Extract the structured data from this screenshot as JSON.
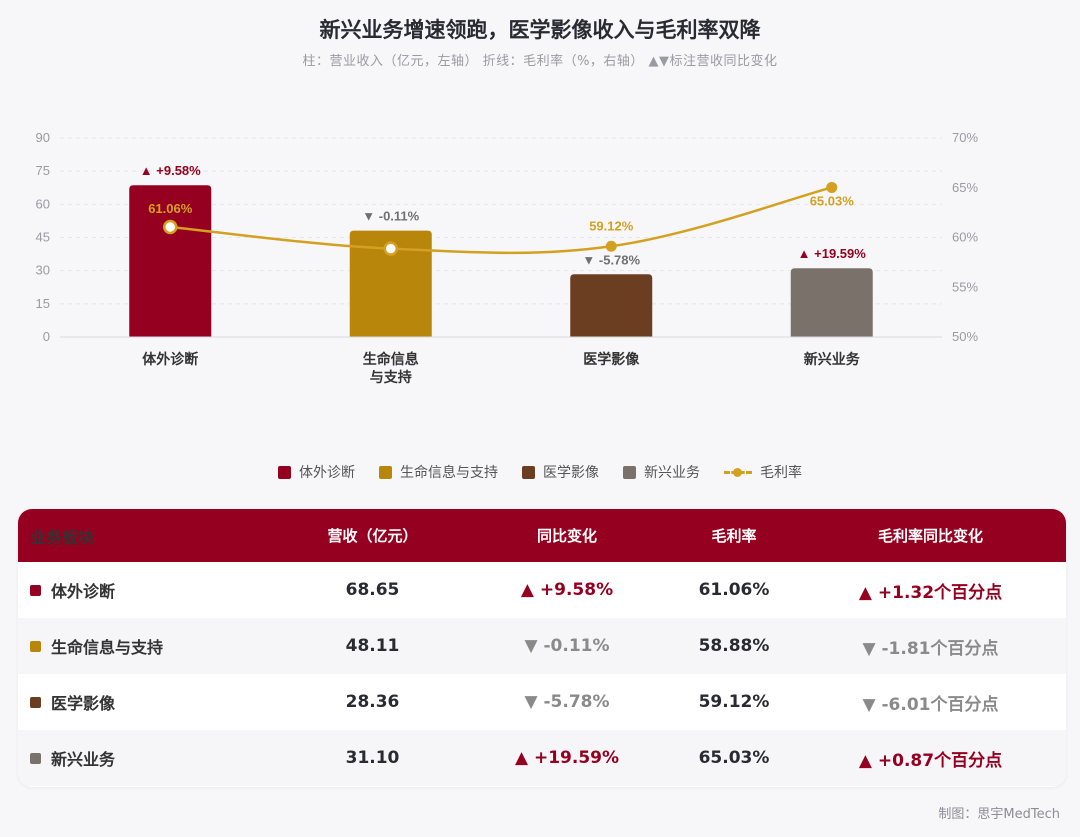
{
  "title": "新兴业务增速领跑，医学影像收入与毛利率双降",
  "subtitle": "柱：营业收入（亿元，左轴）   折线：毛利率（%，右轴）   ▲▼标注营收同比变化",
  "credit": "制图：思宇MedTech",
  "colors": {
    "ivd": "#960020",
    "life": "#b8860b",
    "imaging": "#6b3e22",
    "emerging": "#7b716b",
    "margin_line": "#d4a020",
    "up": "#960020",
    "down": "#8a8a8a"
  },
  "chart_data": {
    "type": "bar",
    "categories": [
      "体外诊断",
      "生命信息\n与支持",
      "医学影像",
      "新兴业务"
    ],
    "series": [
      {
        "name": "营收（亿元）",
        "axis": "left",
        "values": [
          68.65,
          48.11,
          28.36,
          31.1
        ]
      },
      {
        "name": "毛利率",
        "axis": "right",
        "type": "line",
        "values": [
          61.06,
          58.88,
          59.12,
          65.03
        ]
      }
    ],
    "bar_labels": [
      "▲ +9.58%",
      "▼ -0.11%",
      "▼ -5.78%",
      "▲ +19.59%"
    ],
    "bar_label_dirs": [
      "up",
      "down",
      "down",
      "up"
    ],
    "line_labels": [
      "61.06%",
      "",
      "59.12%",
      "65.03%"
    ],
    "y_left": {
      "min": 0,
      "max": 90,
      "ticks": [
        "0",
        "15",
        "30",
        "45",
        "60",
        "75",
        "90"
      ]
    },
    "y_right": {
      "min": 50,
      "max": 70,
      "ticks": [
        "50%",
        "55%",
        "60%",
        "65%",
        "70%"
      ]
    },
    "grid": true,
    "legend_position": "bottom"
  },
  "legend": [
    {
      "label": "体外诊断",
      "kind": "bar",
      "color": "#960020"
    },
    {
      "label": "生命信息与支持",
      "kind": "bar",
      "color": "#b8860b"
    },
    {
      "label": "医学影像",
      "kind": "bar",
      "color": "#6b3e22"
    },
    {
      "label": "新兴业务",
      "kind": "bar",
      "color": "#7b716b"
    },
    {
      "label": "毛利率",
      "kind": "line",
      "color": "#d4a020"
    }
  ],
  "table": {
    "headers": [
      "业务板块",
      "营收（亿元）",
      "同比变化",
      "毛利率",
      "毛利率同比变化"
    ],
    "rows": [
      {
        "name": "体外诊断",
        "color": "#960020",
        "revenue": "68.65",
        "yoy": "▲ +9.58%",
        "yoy_dir": "up",
        "margin": "61.06%",
        "margin_chg": "▲ +1.32个百分点",
        "margin_dir": "up"
      },
      {
        "name": "生命信息与支持",
        "color": "#b8860b",
        "revenue": "48.11",
        "yoy": "▼ -0.11%",
        "yoy_dir": "down",
        "margin": "58.88%",
        "margin_chg": "▼ -1.81个百分点",
        "margin_dir": "down"
      },
      {
        "name": "医学影像",
        "color": "#6b3e22",
        "revenue": "28.36",
        "yoy": "▼ -5.78%",
        "yoy_dir": "down",
        "margin": "59.12%",
        "margin_chg": "▼ -6.01个百分点",
        "margin_dir": "down"
      },
      {
        "name": "新兴业务",
        "color": "#7b716b",
        "revenue": "31.10",
        "yoy": "▲ +19.59%",
        "yoy_dir": "up",
        "margin": "65.03%",
        "margin_chg": "▲ +0.87个百分点",
        "margin_dir": "up"
      }
    ]
  }
}
